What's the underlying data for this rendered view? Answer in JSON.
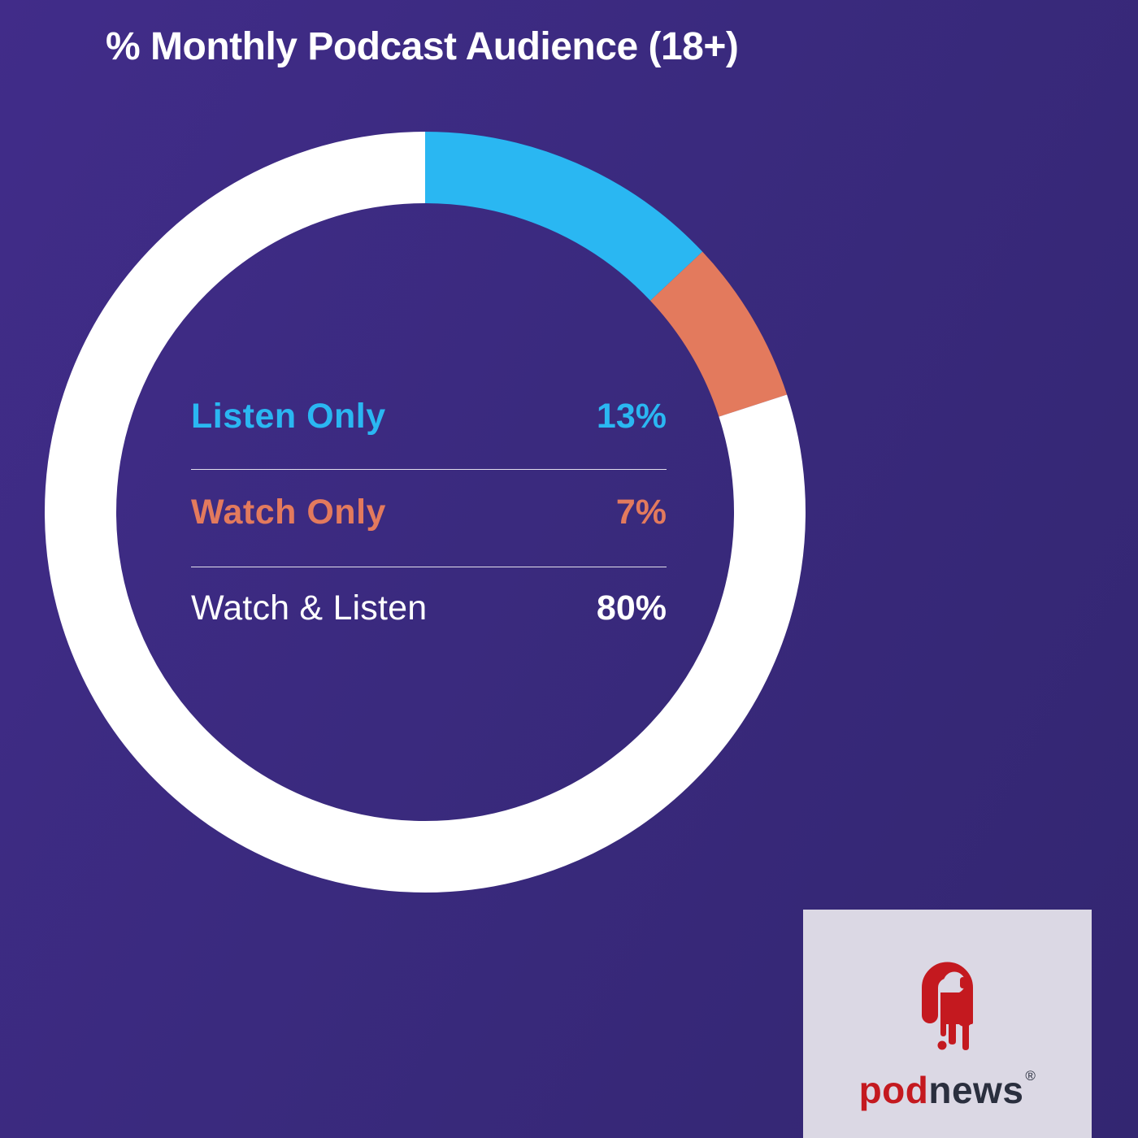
{
  "title": "% Monthly Podcast Audience (18+)",
  "theme": {
    "background_start": "#412c89",
    "background_end": "#332671",
    "separator_color": "rgba(255,255,255,0.85)",
    "title_color": "#ffffff"
  },
  "chart_data": {
    "type": "pie",
    "variant": "donut",
    "title": "% Monthly Podcast Audience (18+)",
    "start_angle_deg": 0,
    "direction": "clockwise",
    "categories": [
      "Listen Only",
      "Watch Only",
      "Watch & Listen"
    ],
    "values": [
      13,
      7,
      80
    ],
    "colors": [
      "#2ab7f2",
      "#e37a5d",
      "#ffffff"
    ],
    "legend_position": "center",
    "geometry": {
      "outer_radius": 468,
      "ring_thickness": 88
    },
    "rows": [
      {
        "label": "Listen Only",
        "value": "13%",
        "color": "#2ab7f2"
      },
      {
        "label": "Watch Only",
        "value": "7%",
        "color": "#e37a5d"
      },
      {
        "label": "Watch & Listen",
        "value": "80%",
        "color": "#ffffff"
      }
    ]
  },
  "logo": {
    "card_bg": "#dbd8e4",
    "brand_red": "#c4191f",
    "brand_dark": "#2a2f3e",
    "word_part1": "pod",
    "word_part2": "news",
    "registered_mark": "®"
  }
}
